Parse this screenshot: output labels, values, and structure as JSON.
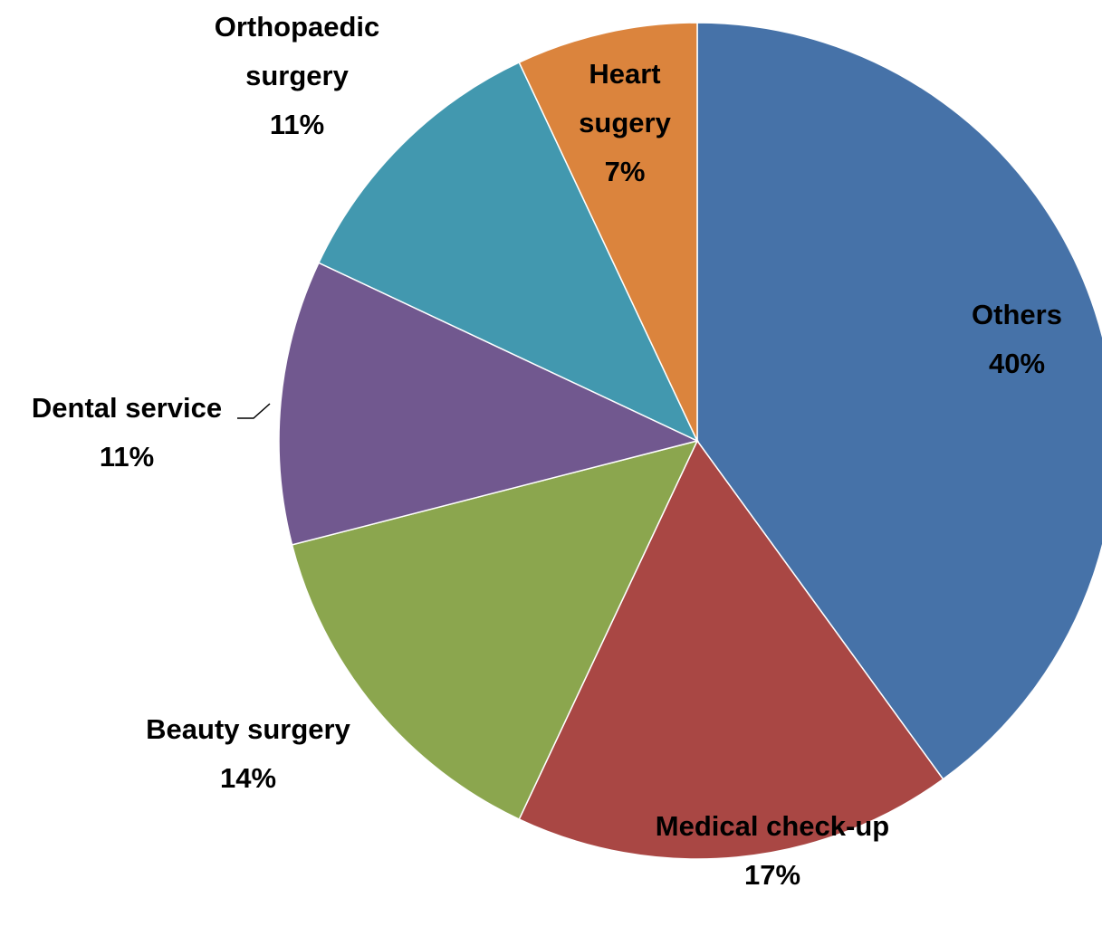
{
  "chart_data": {
    "type": "pie",
    "categories": [
      "Others",
      "Medical check-up",
      "Beauty surgery",
      "Dental service",
      "Orthopaedic surgery",
      "Heart sugery"
    ],
    "values": [
      40,
      17,
      14,
      11,
      11,
      7
    ],
    "value_labels": [
      "40%",
      "17%",
      "14%",
      "11%",
      "11%",
      "7%"
    ],
    "colors": [
      "#4672a8",
      "#a94744",
      "#8ba64e",
      "#71588f",
      "#4298af",
      "#db843d"
    ]
  }
}
